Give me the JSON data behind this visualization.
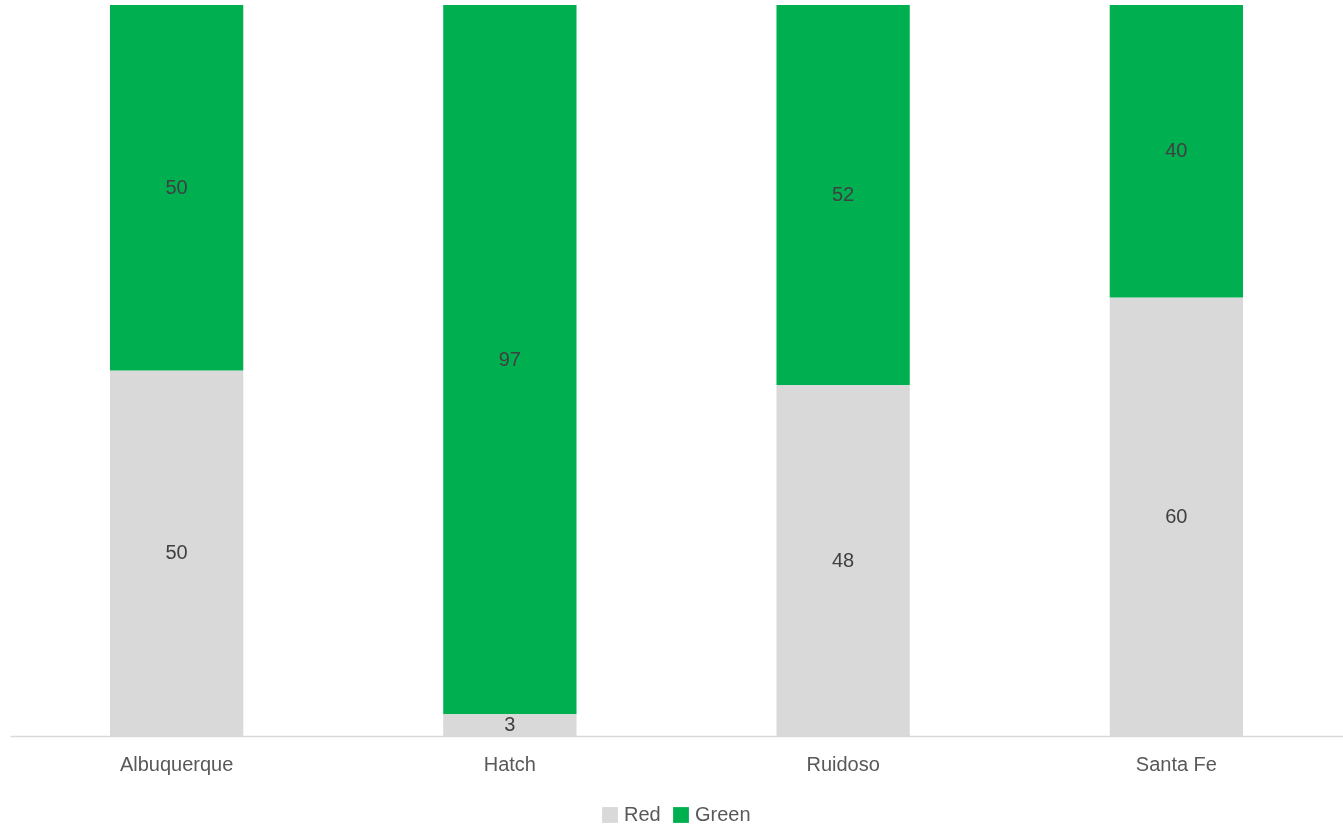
{
  "chart_data": {
    "type": "bar",
    "stacked": true,
    "data_labels": true,
    "legend": "bottom",
    "categories": [
      "Albuquerque",
      "Hatch",
      "Ruidoso",
      "Santa Fe"
    ],
    "series": [
      {
        "name": "Red",
        "color": "#d9d9d9",
        "values": [
          50,
          3,
          48,
          60
        ]
      },
      {
        "name": "Green",
        "color": "#00b050",
        "values": [
          50,
          97,
          52,
          40
        ]
      }
    ]
  }
}
